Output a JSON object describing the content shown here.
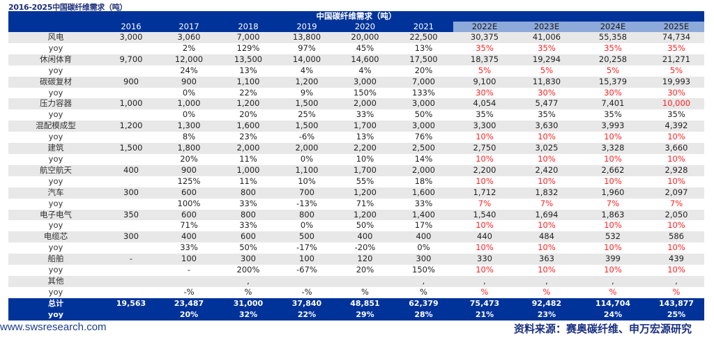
{
  "title": "2016-2025中国碳纤维需求（吨）",
  "table": {
    "caption": "中国碳纤维需求（吨）",
    "years": [
      "2016",
      "2017",
      "2018",
      "2019",
      "2020",
      "2021",
      "2022E",
      "2023E",
      "2024E",
      "2025E"
    ],
    "forecast_header_color": "#8eaadb",
    "header_color": "#003399",
    "highlight_color": "#ff2020",
    "rows": [
      {
        "label": "风电",
        "type": "cat",
        "cells": [
          "3,000",
          "3,060",
          "7,000",
          "13,800",
          "20,000",
          "22,500",
          "30,375",
          "41,006",
          "55,358",
          "74,734"
        ],
        "red": []
      },
      {
        "label": "yoy",
        "type": "yoy",
        "cells": [
          "",
          "2%",
          "129%",
          "97%",
          "45%",
          "13%",
          "35%",
          "35%",
          "35%",
          "35%"
        ],
        "red": [
          6,
          7,
          8,
          9
        ]
      },
      {
        "label": "休闲体育",
        "type": "cat",
        "cells": [
          "9,700",
          "12,000",
          "13,500",
          "14,000",
          "14,600",
          "17,500",
          "18,375",
          "19,294",
          "20,258",
          "21,271"
        ],
        "red": []
      },
      {
        "label": "yoy",
        "type": "yoy",
        "cells": [
          "",
          "24%",
          "13%",
          "4%",
          "4%",
          "20%",
          "5%",
          "5%",
          "5%",
          "5%"
        ],
        "red": [
          6,
          7,
          8,
          9
        ]
      },
      {
        "label": "碳碳复材",
        "type": "cat",
        "cells": [
          "900",
          "900",
          "1,100",
          "1,200",
          "3,000",
          "7,000",
          "9,100",
          "11,830",
          "15,379",
          "19,993"
        ],
        "red": []
      },
      {
        "label": "yoy",
        "type": "yoy",
        "cells": [
          "",
          "0%",
          "22%",
          "9%",
          "150%",
          "133%",
          "30%",
          "30%",
          "30%",
          "30%"
        ],
        "red": [
          6,
          7,
          8,
          9
        ]
      },
      {
        "label": "压力容器",
        "type": "cat",
        "cells": [
          "1,000",
          "1,000",
          "1,200",
          "1,500",
          "2,000",
          "3,000",
          "4,054",
          "5,477",
          "7,401",
          "10,000"
        ],
        "red": [
          9
        ]
      },
      {
        "label": "yoy",
        "type": "yoy",
        "cells": [
          "",
          "0%",
          "20%",
          "25%",
          "33%",
          "50%",
          "35%",
          "35%",
          "35%",
          "35%"
        ],
        "red": []
      },
      {
        "label": "混配模成型",
        "type": "cat",
        "cells": [
          "1,200",
          "1,300",
          "1,600",
          "1,500",
          "1,700",
          "3,000",
          "3,300",
          "3,630",
          "3,993",
          "4,392"
        ],
        "red": []
      },
      {
        "label": "yoy",
        "type": "yoy",
        "cells": [
          "",
          "8%",
          "23%",
          "-6%",
          "13%",
          "76%",
          "10%",
          "10%",
          "10%",
          "10%"
        ],
        "red": [
          6,
          7,
          8,
          9
        ]
      },
      {
        "label": "建筑",
        "type": "cat",
        "cells": [
          "1,500",
          "1,800",
          "2,000",
          "2,000",
          "2,200",
          "2,500",
          "2,750",
          "3,025",
          "3,328",
          "3,660"
        ],
        "red": []
      },
      {
        "label": "yoy",
        "type": "yoy",
        "cells": [
          "",
          "20%",
          "11%",
          "0%",
          "10%",
          "14%",
          "10%",
          "10%",
          "10%",
          "10%"
        ],
        "red": [
          6,
          7,
          8,
          9
        ]
      },
      {
        "label": "航空航天",
        "type": "cat",
        "cells": [
          "400",
          "900",
          "1,000",
          "1,100",
          "1,700",
          "2,000",
          "2,200",
          "2,420",
          "2,662",
          "2,928"
        ],
        "red": []
      },
      {
        "label": "yoy",
        "type": "yoy",
        "cells": [
          "",
          "125%",
          "11%",
          "10%",
          "55%",
          "18%",
          "10%",
          "10%",
          "10%",
          "10%"
        ],
        "red": [
          6,
          7,
          8,
          9
        ]
      },
      {
        "label": "汽车",
        "type": "cat",
        "cells": [
          "300",
          "600",
          "800",
          "700",
          "1,200",
          "1,600",
          "1,712",
          "1,832",
          "1,960",
          "2,097"
        ],
        "red": []
      },
      {
        "label": "yoy",
        "type": "yoy",
        "cells": [
          "",
          "100%",
          "33%",
          "-13%",
          "71%",
          "33%",
          "7%",
          "7%",
          "7%",
          "7%"
        ],
        "red": [
          6,
          7,
          8,
          9
        ]
      },
      {
        "label": "电子电气",
        "type": "cat",
        "cells": [
          "350",
          "600",
          "800",
          "800",
          "1,200",
          "1,400",
          "1,540",
          "1,694",
          "1,863",
          "2,050"
        ],
        "red": []
      },
      {
        "label": "yoy",
        "type": "yoy",
        "cells": [
          "",
          "71%",
          "33%",
          "0%",
          "50%",
          "17%",
          "10%",
          "10%",
          "10%",
          "10%"
        ],
        "red": [
          6,
          7,
          8,
          9
        ]
      },
      {
        "label": "电缆芯",
        "type": "cat",
        "cells": [
          "300",
          "400",
          "600",
          "500",
          "400",
          "400",
          "440",
          "484",
          "532",
          "586"
        ],
        "red": []
      },
      {
        "label": "yoy",
        "type": "yoy",
        "cells": [
          "",
          "33%",
          "50%",
          "-17%",
          "-20%",
          "0%",
          "10%",
          "10%",
          "10%",
          "10%"
        ],
        "red": [
          6,
          7,
          8,
          9
        ]
      },
      {
        "label": "船舶",
        "type": "cat",
        "cells": [
          "-",
          "100",
          "300",
          "100",
          "120",
          "300",
          "330",
          "363",
          "399",
          "439"
        ],
        "red": []
      },
      {
        "label": "yoy",
        "type": "yoy",
        "cells": [
          "",
          "-",
          "200%",
          "-67%",
          "20%",
          "150%",
          "10%",
          "10%",
          "10%",
          "10%"
        ],
        "red": [
          6,
          7,
          8,
          9
        ]
      },
      {
        "label": "其他",
        "type": "cat",
        "cells": [
          "",
          "",
          ",",
          "",
          "",
          ",",
          ",",
          ",",
          ",",
          ","
        ],
        "red": []
      },
      {
        "label": "yoy",
        "type": "yoy",
        "cells": [
          "",
          "-%",
          "%",
          "-%",
          "%",
          "%",
          "%",
          "%",
          "%",
          "%"
        ],
        "red": [
          6,
          7,
          8,
          9
        ]
      },
      {
        "label": "总计",
        "type": "tot",
        "cells": [
          "19,563",
          "23,487",
          "31,000",
          "37,840",
          "48,851",
          "62,379",
          "75,473",
          "92,482",
          "114,704",
          "143,877"
        ],
        "red": []
      },
      {
        "label": "yoy",
        "type": "tot",
        "cells": [
          "",
          "20%",
          "32%",
          "22%",
          "29%",
          "28%",
          "21%",
          "23%",
          "24%",
          "25%"
        ],
        "red": []
      }
    ]
  },
  "footer": {
    "website": "www.swsresearch.com",
    "source": "资料来源：赛奥碳纤维、申万宏源研究"
  }
}
